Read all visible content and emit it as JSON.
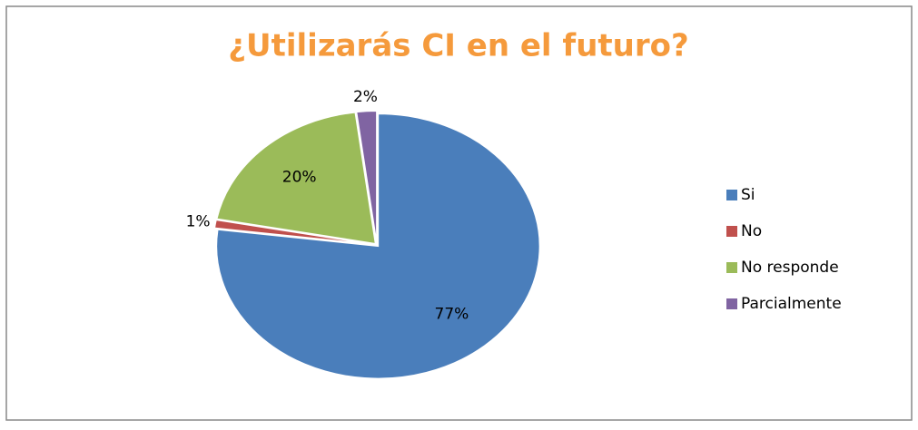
{
  "chart_data": {
    "type": "pie",
    "title": "¿Utilizarás CI en el futuro?",
    "categories": [
      "Si",
      "No",
      "No responde",
      "Parcialmente"
    ],
    "values": [
      77,
      1,
      20,
      2
    ],
    "value_labels": [
      "77%",
      "1%",
      "20%",
      "2%"
    ],
    "colors": [
      "#4a7ebb",
      "#c0504d",
      "#9bbb59",
      "#8064a2"
    ],
    "legend": "right"
  }
}
